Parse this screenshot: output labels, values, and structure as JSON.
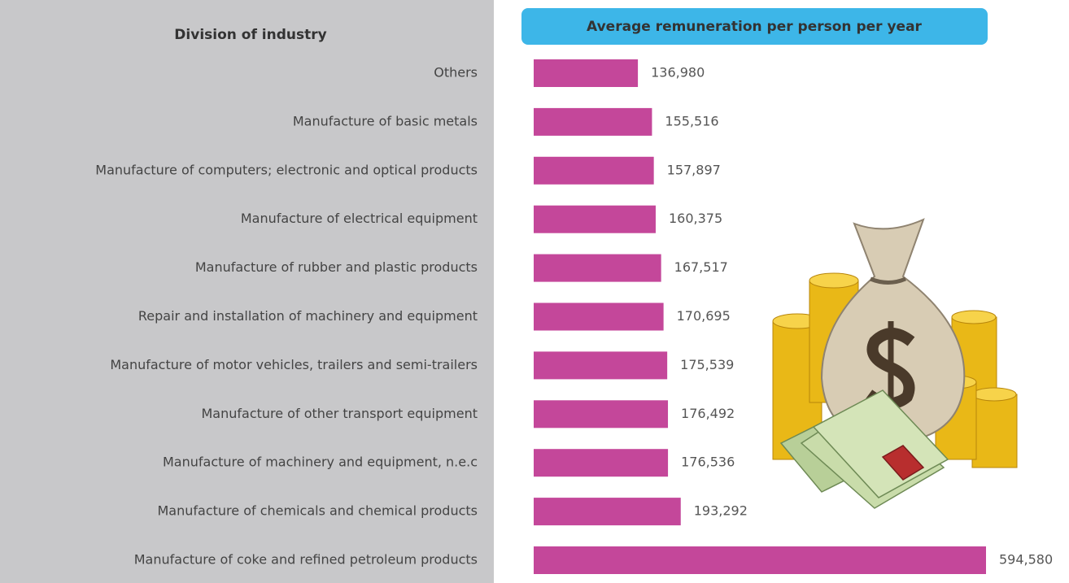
{
  "chart_data": {
    "type": "bar",
    "orientation": "horizontal",
    "category_header": "Division of industry",
    "title": "Average remuneration per person per year",
    "categories": [
      "Others",
      "Manufacture of basic metals",
      "Manufacture of computers; electronic and optical products",
      "Manufacture of electrical equipment",
      "Manufacture of rubber and plastic products",
      "Repair and installation of machinery and equipment",
      "Manufacture of motor vehicles, trailers and semi-trailers",
      "Manufacture of other transport equipment",
      "Manufacture of machinery and equipment, n.e.c",
      "Manufacture of chemicals and chemical products",
      "Manufacture of coke and refined petroleum products"
    ],
    "values": [
      136980,
      155516,
      157897,
      160375,
      167517,
      170695,
      175539,
      176492,
      176536,
      193292,
      594580
    ],
    "value_labels": [
      "136,980",
      "155,516",
      "157,897",
      "160,375",
      "167,517",
      "170,695",
      "175,539",
      "176,492",
      "176,536",
      "193,292",
      "594,580"
    ],
    "color": "#c4479a"
  }
}
